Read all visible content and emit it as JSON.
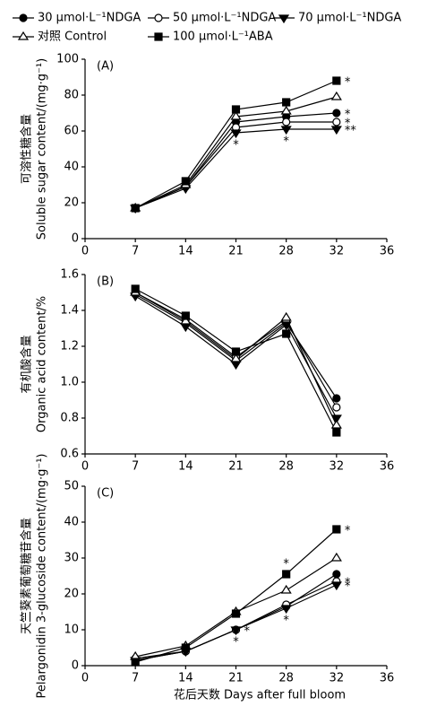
{
  "legend": {
    "series_names_from": "chart_data.0.series"
  },
  "x_label": "花后天数 Days after full bloom",
  "chart_data": [
    {
      "type": "line",
      "panel": "(A)",
      "y_label": [
        "可溶性糖含量",
        "Soluble sugar content/(mg·g⁻¹)"
      ],
      "categories": [
        "0",
        "7",
        "14",
        "21",
        "28",
        "32",
        "36"
      ],
      "ylim": [
        0,
        100
      ],
      "yticks": [
        0,
        20,
        40,
        60,
        80,
        100
      ],
      "series": [
        {
          "name": "30 μmol·L⁻¹NDGA",
          "color": "#000000",
          "marker": "circle",
          "values": [
            null,
            17,
            29,
            65,
            68,
            70,
            null
          ]
        },
        {
          "name": "50 μmol·L⁻¹NDGA",
          "color": "#000000",
          "marker": "circle-open",
          "values": [
            null,
            17,
            29,
            62,
            65,
            65,
            null
          ]
        },
        {
          "name": "70 μmol·L⁻¹NDGA",
          "color": "#000000",
          "marker": "triangle-down",
          "values": [
            null,
            17,
            28,
            59,
            61,
            61,
            null
          ]
        },
        {
          "name": "对照 Control",
          "color": "#000000",
          "marker": "triangle-up-open",
          "values": [
            null,
            17,
            30,
            68,
            71,
            79,
            null
          ]
        },
        {
          "name": "100 μmol·L⁻¹ABA",
          "color": "#000000",
          "marker": "square",
          "values": [
            null,
            17,
            32,
            72,
            76,
            88,
            null
          ]
        }
      ],
      "annotations": [
        {
          "text": "*",
          "series": 4,
          "index": 5,
          "side": "right"
        },
        {
          "text": "*",
          "series": 0,
          "index": 5,
          "side": "right"
        },
        {
          "text": "*",
          "series": 1,
          "index": 5,
          "side": "right"
        },
        {
          "text": "**",
          "series": 2,
          "index": 5,
          "side": "right"
        },
        {
          "text": "*",
          "series": 2,
          "index": 3,
          "side": "below"
        },
        {
          "text": "*",
          "series": 2,
          "index": 4,
          "side": "below"
        }
      ]
    },
    {
      "type": "line",
      "panel": "(B)",
      "y_label": [
        "有机酸含量",
        "Organic acid content/%"
      ],
      "categories": [
        "0",
        "7",
        "14",
        "21",
        "28",
        "32",
        "36"
      ],
      "ylim": [
        0.6,
        1.6
      ],
      "yticks": [
        0.6,
        0.8,
        {
          "value": 1,
          "label": "1.0"
        },
        1.2,
        1.4,
        1.6
      ],
      "series": [
        {
          "color": "#000000",
          "marker": "circle",
          "values": [
            null,
            1.49,
            1.33,
            1.12,
            1.33,
            0.91,
            null
          ]
        },
        {
          "color": "#000000",
          "marker": "circle-open",
          "values": [
            null,
            1.5,
            1.35,
            1.14,
            1.34,
            0.86,
            null
          ]
        },
        {
          "color": "#000000",
          "marker": "triangle-down",
          "values": [
            null,
            1.48,
            1.31,
            1.1,
            1.32,
            0.8,
            null
          ]
        },
        {
          "color": "#000000",
          "marker": "triangle-up-open",
          "values": [
            null,
            1.5,
            1.34,
            1.13,
            1.36,
            0.76,
            null
          ]
        },
        {
          "color": "#000000",
          "marker": "square",
          "values": [
            null,
            1.52,
            1.37,
            1.17,
            1.27,
            0.72,
            null
          ]
        }
      ],
      "annotations": []
    },
    {
      "type": "line",
      "panel": "(C)",
      "y_label": [
        "天竺葵素葡萄糖苷含量",
        "Pelargonidin 3-glucoside content/(mg·g⁻¹)"
      ],
      "categories": [
        "0",
        "7",
        "14",
        "21",
        "28",
        "32",
        "36"
      ],
      "ylim": [
        0,
        50
      ],
      "yticks": [
        0,
        10,
        20,
        30,
        40,
        50
      ],
      "series": [
        {
          "color": "#000000",
          "marker": "circle",
          "values": [
            null,
            1.5,
            4,
            10,
            16.5,
            25.5,
            null
          ]
        },
        {
          "color": "#000000",
          "marker": "circle-open",
          "values": [
            null,
            2,
            4,
            10,
            17,
            23.5,
            null
          ]
        },
        {
          "color": "#000000",
          "marker": "triangle-down",
          "values": [
            null,
            1.5,
            4,
            10,
            16,
            22.5,
            null
          ]
        },
        {
          "color": "#000000",
          "marker": "triangle-up-open",
          "values": [
            null,
            2.5,
            5.5,
            15,
            21,
            30,
            null
          ]
        },
        {
          "color": "#000000",
          "marker": "square",
          "values": [
            null,
            1,
            5,
            14.5,
            25.5,
            38,
            null
          ]
        }
      ],
      "annotations": [
        {
          "text": "*",
          "series": 0,
          "index": 3,
          "side": "below"
        },
        {
          "text": "*",
          "series": 1,
          "index": 3,
          "side": "right"
        },
        {
          "text": "*",
          "series": 4,
          "index": 4,
          "side": "above"
        },
        {
          "text": "*",
          "series": 2,
          "index": 4,
          "side": "below"
        },
        {
          "text": "*",
          "series": 4,
          "index": 5,
          "side": "right"
        },
        {
          "text": "*",
          "series": 1,
          "index": 5,
          "side": "right"
        },
        {
          "text": "*",
          "series": 2,
          "index": 5,
          "side": "right"
        }
      ]
    }
  ]
}
